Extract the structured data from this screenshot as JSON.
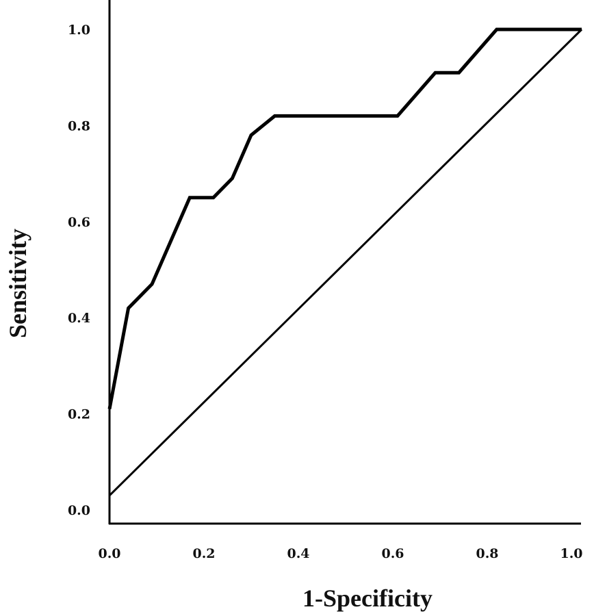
{
  "chart_data": {
    "type": "line",
    "title": "",
    "xlabel": "1-Specificity",
    "ylabel": "Sensitivity",
    "xlim": [
      0,
      1
    ],
    "ylim": [
      0,
      1
    ],
    "xticks": [
      "0.0",
      "0.2",
      "0.4",
      "0.6",
      "0.8",
      "1.0"
    ],
    "yticks": [
      "0.0",
      "0.2",
      "0.4",
      "0.6",
      "0.8",
      "1.0"
    ],
    "grid": false,
    "legend": "none",
    "series": [
      {
        "color": "#000000",
        "x": [
          0.0,
          0.04,
          0.09,
          0.17,
          0.22,
          0.26,
          0.3,
          0.35,
          0.61,
          0.69,
          0.74,
          0.82,
          1.0
        ],
        "y": [
          0.21,
          0.42,
          0.47,
          0.65,
          0.65,
          0.69,
          0.78,
          0.82,
          0.82,
          0.91,
          0.91,
          1.0,
          1.0
        ]
      },
      {
        "color": "#000000",
        "x": [
          0.0,
          1.0
        ],
        "y": [
          0.03,
          1.0
        ]
      }
    ]
  }
}
